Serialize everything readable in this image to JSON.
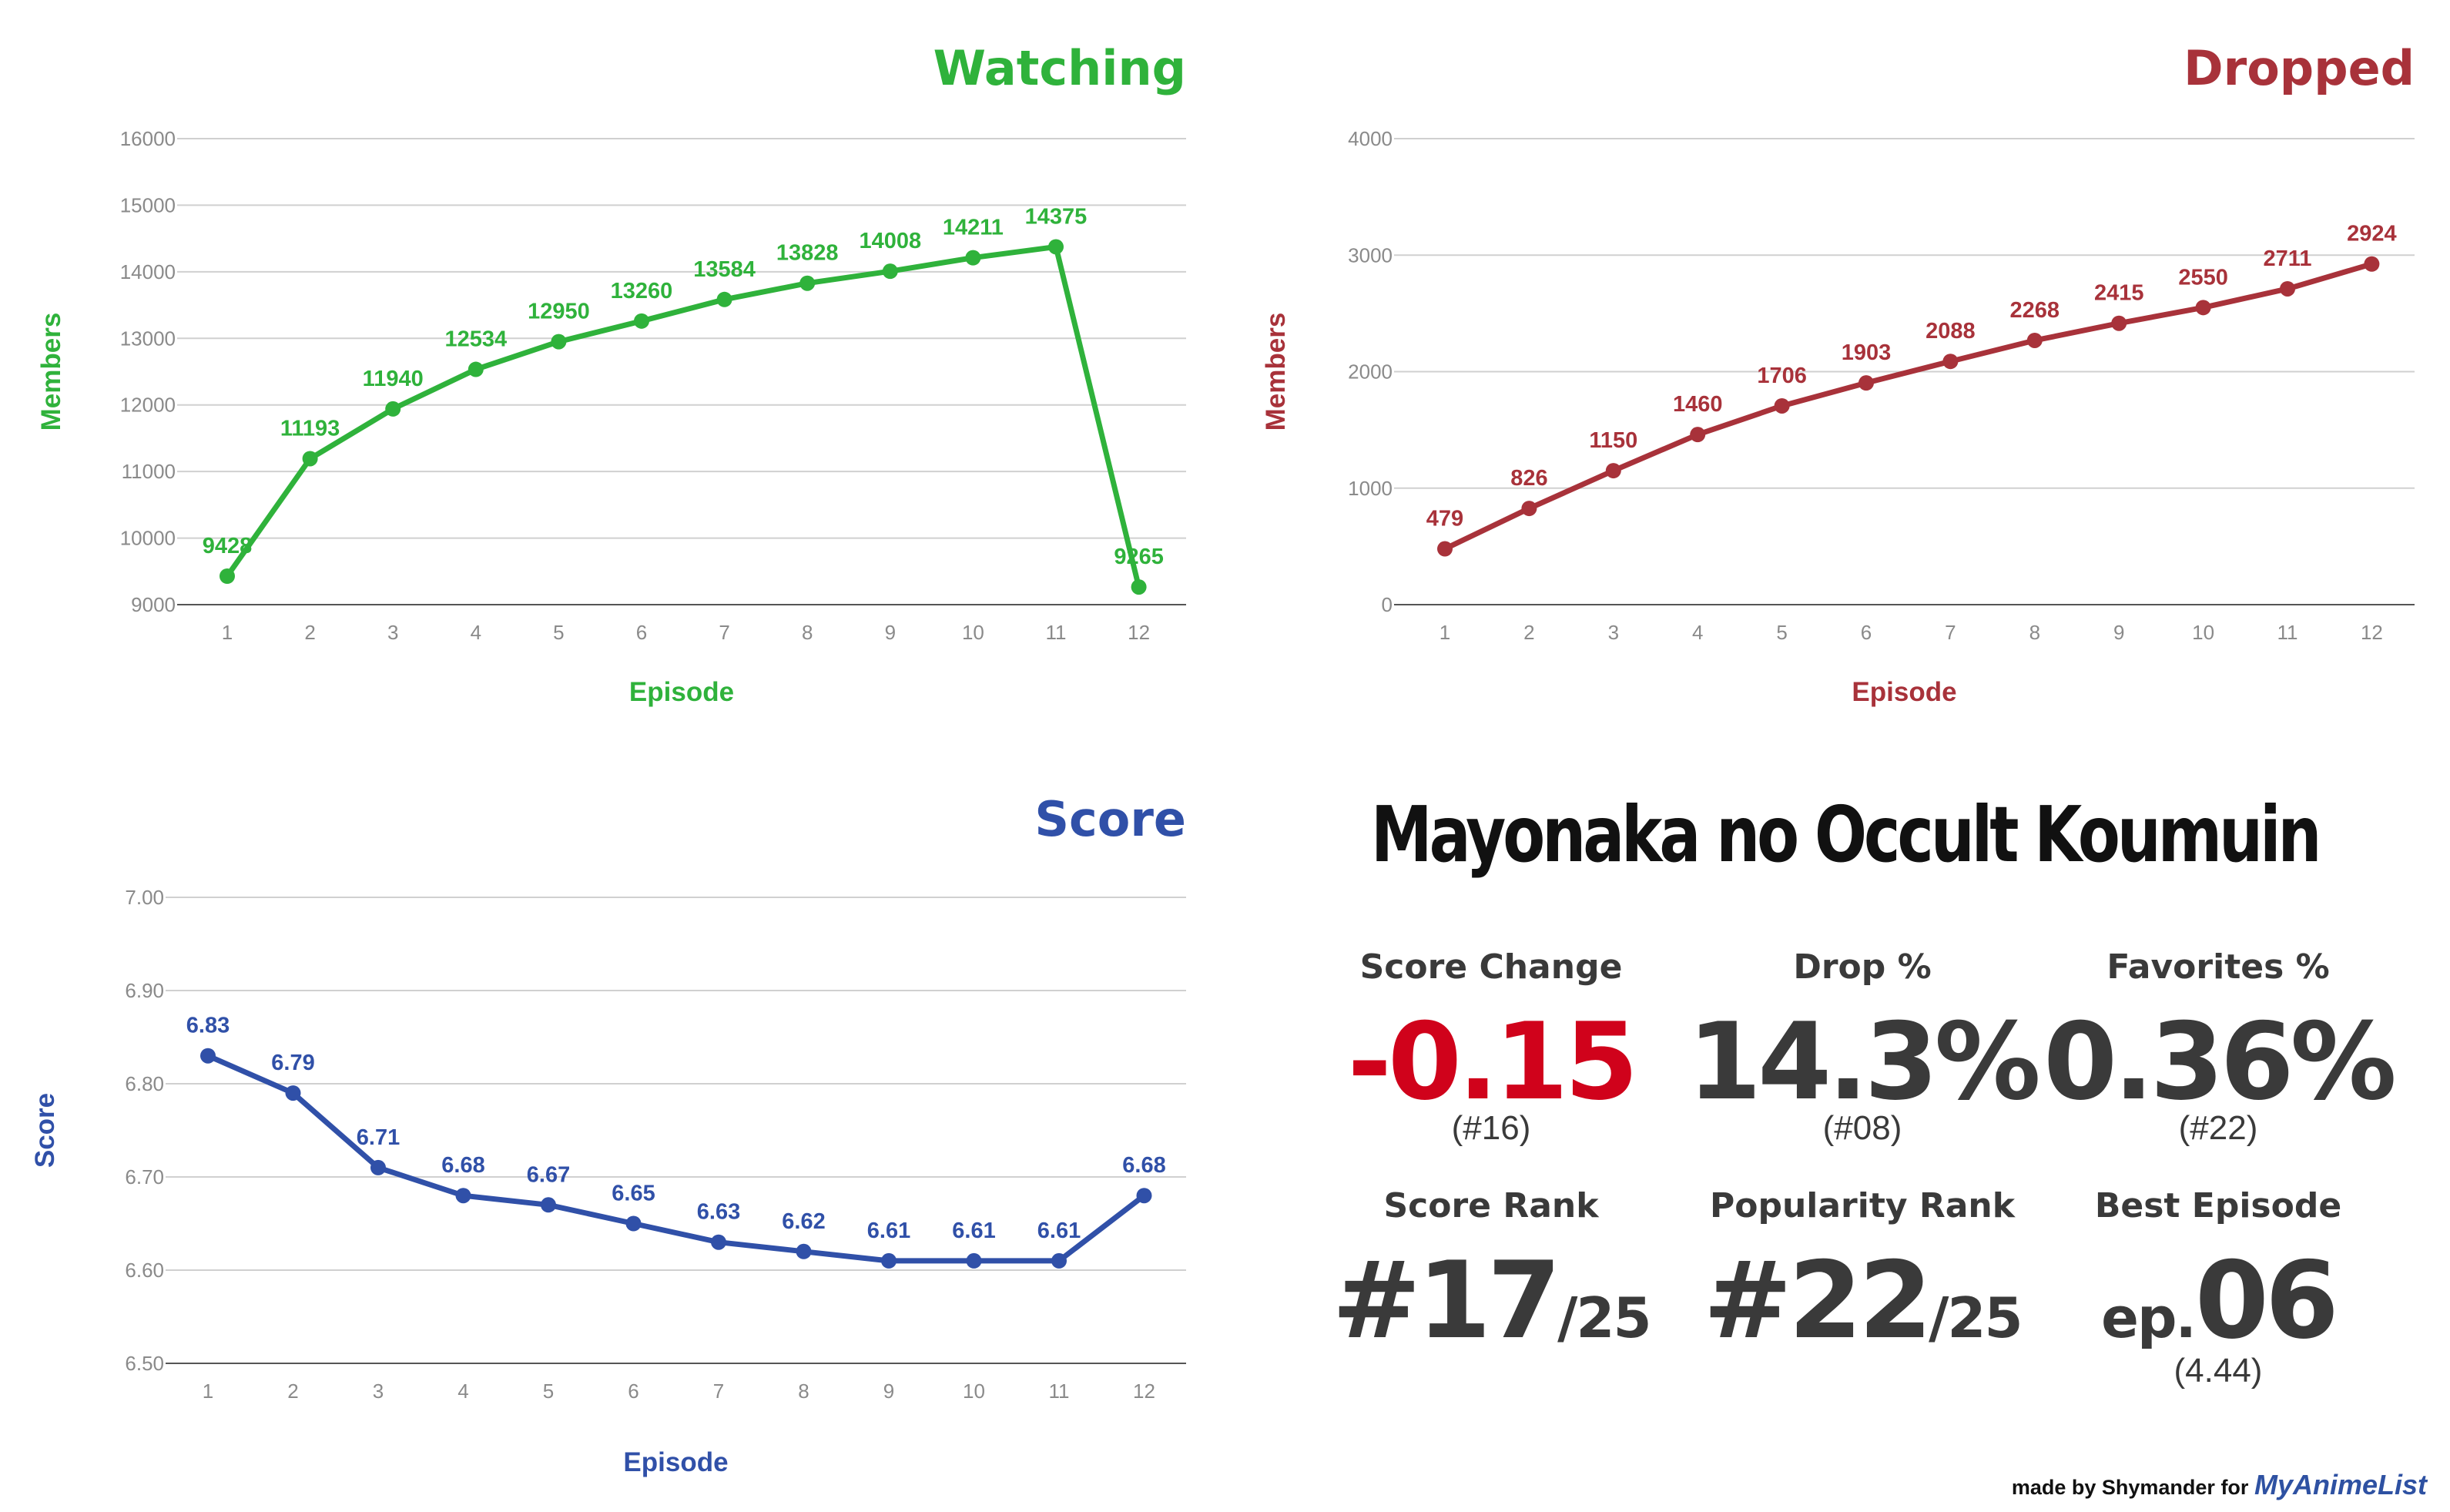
{
  "chart_data": [
    {
      "type": "line",
      "title": "Watching",
      "xlabel": "Episode",
      "ylabel": "Members",
      "color": "#2fb23b",
      "ylim": [
        9000,
        16000
      ],
      "yticks": [
        "9000",
        "10000",
        "11000",
        "12000",
        "13000",
        "14000",
        "15000",
        "16000"
      ],
      "categories": [
        "1",
        "2",
        "3",
        "4",
        "5",
        "6",
        "7",
        "8",
        "9",
        "10",
        "11",
        "12"
      ],
      "values": [
        9428,
        11193,
        11940,
        12534,
        12950,
        13260,
        13584,
        13828,
        14008,
        14211,
        14375,
        9265
      ],
      "data_labels": [
        "9428",
        "11193",
        "11940",
        "12534",
        "12950",
        "13260",
        "13584",
        "13828",
        "14008",
        "14211",
        "14375",
        "9265"
      ],
      "grid": true
    },
    {
      "type": "line",
      "title": "Dropped",
      "xlabel": "Episode",
      "ylabel": "Members",
      "color": "#a8323a",
      "ylim": [
        0,
        4000
      ],
      "yticks": [
        "0",
        "1000",
        "2000",
        "3000",
        "4000"
      ],
      "categories": [
        "1",
        "2",
        "3",
        "4",
        "5",
        "6",
        "7",
        "8",
        "9",
        "10",
        "11",
        "12"
      ],
      "values": [
        479,
        826,
        1150,
        1460,
        1706,
        1903,
        2088,
        2268,
        2415,
        2550,
        2711,
        2924
      ],
      "data_labels": [
        "479",
        "826",
        "1150",
        "1460",
        "1706",
        "1903",
        "2088",
        "2268",
        "2415",
        "2550",
        "2711",
        "2924"
      ],
      "grid": true
    },
    {
      "type": "line",
      "title": "Score",
      "xlabel": "Episode",
      "ylabel": "Score",
      "color": "#3050a8",
      "ylim": [
        6.5,
        7.0
      ],
      "yticks": [
        "6.50",
        "6.60",
        "6.70",
        "6.80",
        "6.90",
        "7.00"
      ],
      "categories": [
        "1",
        "2",
        "3",
        "4",
        "5",
        "6",
        "7",
        "8",
        "9",
        "10",
        "11",
        "12"
      ],
      "values": [
        6.83,
        6.79,
        6.71,
        6.68,
        6.67,
        6.65,
        6.63,
        6.62,
        6.61,
        6.61,
        6.61,
        6.68
      ],
      "data_labels": [
        "6.83",
        "6.79",
        "6.71",
        "6.68",
        "6.67",
        "6.65",
        "6.63",
        "6.62",
        "6.61",
        "6.61",
        "6.61",
        "6.68"
      ],
      "grid": true
    }
  ],
  "summary": {
    "title": "Mayonaka no Occult Koumuin",
    "score_change": {
      "label": "Score Change",
      "value": "-0.15",
      "rank": "(#16)",
      "color": "#d0021b"
    },
    "drop_pct": {
      "label": "Drop %",
      "value": "14.3%",
      "rank": "(#08)"
    },
    "favorites_pct": {
      "label": "Favorites %",
      "value": "0.36%",
      "rank": "(#22)"
    },
    "score_rank": {
      "label": "Score Rank",
      "value": "#17",
      "of": "/25"
    },
    "popularity_rank": {
      "label": "Popularity Rank",
      "value": "#22",
      "of": "/25"
    },
    "best_episode": {
      "label": "Best Episode",
      "prefix": "ep.",
      "value": "06",
      "score": "(4.44)"
    }
  },
  "footer": {
    "text": "made by Shymander for",
    "brand": "MyAnimeList"
  }
}
